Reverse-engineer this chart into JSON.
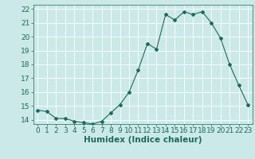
{
  "x": [
    0,
    1,
    2,
    3,
    4,
    5,
    6,
    7,
    8,
    9,
    10,
    11,
    12,
    13,
    14,
    15,
    16,
    17,
    18,
    19,
    20,
    21,
    22,
    23
  ],
  "y": [
    14.7,
    14.6,
    14.1,
    14.1,
    13.9,
    13.8,
    13.7,
    13.9,
    14.5,
    15.1,
    16.0,
    17.6,
    19.5,
    19.1,
    21.6,
    21.2,
    21.8,
    21.6,
    21.8,
    21.0,
    19.9,
    18.0,
    16.5,
    15.1
  ],
  "xlabel": "Humidex (Indice chaleur)",
  "ylim": [
    13.7,
    22.3
  ],
  "xlim": [
    -0.5,
    23.5
  ],
  "yticks": [
    14,
    15,
    16,
    17,
    18,
    19,
    20,
    21,
    22
  ],
  "xticks": [
    0,
    1,
    2,
    3,
    4,
    5,
    6,
    7,
    8,
    9,
    10,
    11,
    12,
    13,
    14,
    15,
    16,
    17,
    18,
    19,
    20,
    21,
    22,
    23
  ],
  "line_color": "#1a6b5a",
  "marker": "D",
  "marker_size": 2.0,
  "bg_color": "#cce9e9",
  "grid_color": "#ffffff",
  "tick_label_color": "#1a6b5a",
  "xlabel_color": "#1a6b5a",
  "xlabel_fontsize": 7.5,
  "tick_fontsize": 6.5
}
